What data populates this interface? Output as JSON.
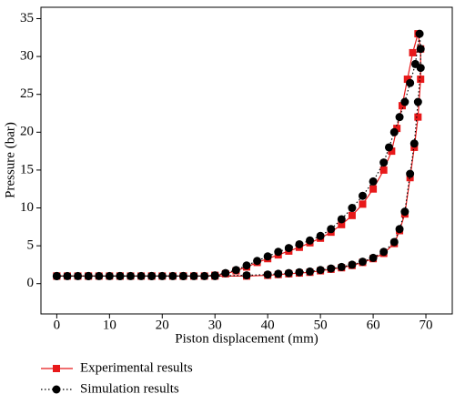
{
  "chart_data": {
    "type": "line",
    "x_label": "Piston displacement (mm)",
    "y_label": "Pressure (bar)",
    "xlim": [
      -3,
      75
    ],
    "xticks": [
      0,
      10,
      20,
      30,
      40,
      50,
      60,
      70
    ],
    "ylim": [
      -4,
      36.5
    ],
    "yticks": [
      0,
      5,
      10,
      15,
      20,
      25,
      30,
      35
    ],
    "series": [
      {
        "name": "Experimental results",
        "color": "#e8191a",
        "marker": "square",
        "line_style": "solid",
        "x": [
          0,
          2,
          4,
          6,
          8,
          10,
          12,
          14,
          16,
          18,
          20,
          22,
          24,
          26,
          28,
          30,
          32,
          34,
          36,
          38,
          40,
          42,
          44,
          46,
          48,
          50,
          52,
          54,
          56,
          58,
          60,
          62,
          63.5,
          64.5,
          65.5,
          66.5,
          67.5,
          68.5,
          69,
          69,
          68.5,
          67.8,
          67,
          66,
          65,
          64,
          62,
          60,
          58,
          56,
          54,
          52,
          50,
          48,
          46,
          44,
          42,
          40,
          36,
          30,
          24,
          18,
          12,
          6,
          0
        ],
        "values": [
          1,
          1,
          1,
          1,
          1,
          1,
          1,
          1,
          1,
          1,
          1,
          1,
          1,
          1,
          1,
          1.1,
          1.3,
          1.7,
          2.2,
          2.8,
          3.3,
          3.8,
          4.3,
          4.8,
          5.4,
          6,
          6.8,
          7.8,
          9,
          10.5,
          12.5,
          15,
          17.5,
          20.5,
          23.5,
          27,
          30.5,
          33,
          31,
          27,
          22,
          18,
          14,
          9.2,
          7,
          5.3,
          4,
          3.3,
          2.8,
          2.4,
          2.1,
          1.9,
          1.7,
          1.5,
          1.4,
          1.3,
          1.2,
          1.1,
          1,
          1,
          1,
          1,
          1,
          1,
          1
        ]
      },
      {
        "name": "Simulation results",
        "color": "#000000",
        "marker": "circle",
        "line_style": "dotted",
        "x": [
          0,
          2,
          4,
          6,
          8,
          10,
          12,
          14,
          16,
          18,
          20,
          22,
          24,
          26,
          28,
          30,
          32,
          34,
          36,
          38,
          40,
          42,
          44,
          46,
          48,
          50,
          52,
          54,
          56,
          58,
          60,
          62,
          63,
          64,
          65,
          66,
          67,
          68,
          68.8,
          69,
          69,
          68.5,
          67.8,
          67,
          66,
          65,
          64,
          62,
          60,
          58,
          56,
          54,
          52,
          50,
          48,
          46,
          44,
          42,
          40,
          36,
          30,
          24,
          18,
          12,
          6,
          0
        ],
        "values": [
          1,
          1,
          1,
          1,
          1,
          1,
          1,
          1,
          1,
          1,
          1,
          1,
          1,
          1,
          1,
          1.1,
          1.4,
          1.8,
          2.4,
          3,
          3.6,
          4.2,
          4.7,
          5.2,
          5.7,
          6.3,
          7.2,
          8.5,
          10,
          11.6,
          13.5,
          16,
          18,
          20,
          22,
          24,
          26.5,
          29,
          33,
          31,
          28.5,
          24,
          18.5,
          14.5,
          9.5,
          7.2,
          5.5,
          4.2,
          3.4,
          2.9,
          2.5,
          2.2,
          2,
          1.8,
          1.6,
          1.5,
          1.4,
          1.3,
          1.2,
          1.1,
          1,
          1,
          1,
          1,
          1,
          1
        ]
      }
    ]
  }
}
